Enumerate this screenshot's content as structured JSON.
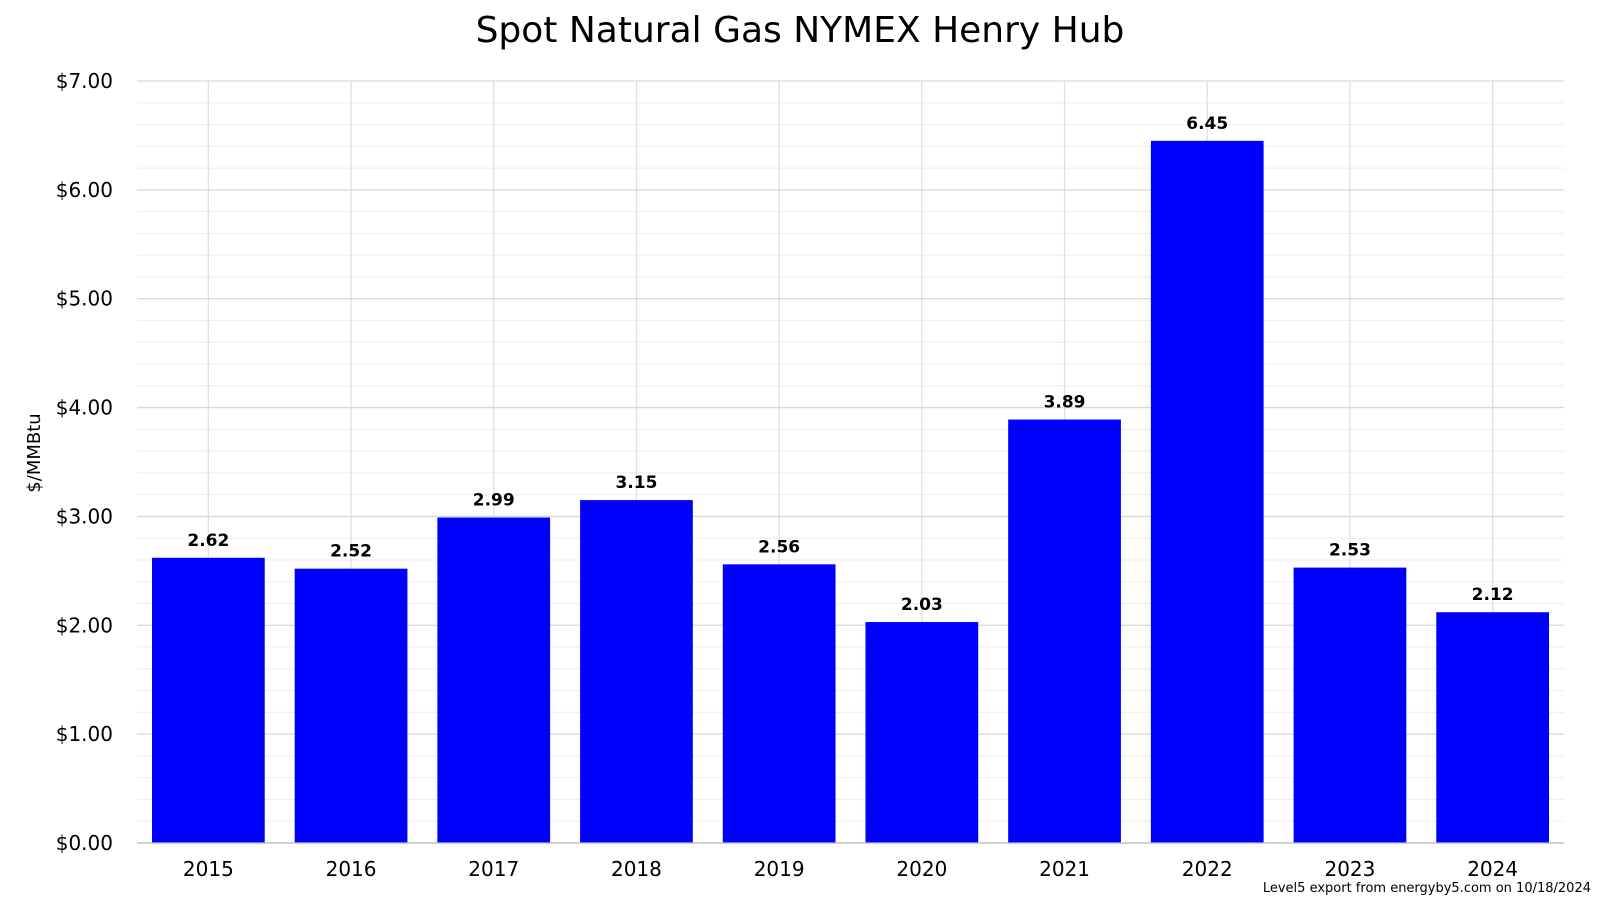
{
  "chart_data": {
    "type": "bar",
    "title": "Spot Natural Gas NYMEX Henry Hub",
    "ylabel": "$/MMBtu",
    "xlabel": "",
    "categories": [
      "2015",
      "2016",
      "2017",
      "2018",
      "2019",
      "2020",
      "2021",
      "2022",
      "2023",
      "2024"
    ],
    "values": [
      2.62,
      2.52,
      2.99,
      3.15,
      2.56,
      2.03,
      3.89,
      6.45,
      2.53,
      2.12
    ],
    "data_labels": [
      "2.62",
      "2.52",
      "2.99",
      "3.15",
      "2.56",
      "2.03",
      "3.89",
      "6.45",
      "2.53",
      "2.12"
    ],
    "ylim": [
      0,
      7
    ],
    "yticks": [
      0,
      1,
      2,
      3,
      4,
      5,
      6,
      7
    ],
    "ytick_labels": [
      "$0.00",
      "$1.00",
      "$2.00",
      "$3.00",
      "$4.00",
      "$5.00",
      "$6.00",
      "$7.00"
    ],
    "minor_gridlines_per_major": 5,
    "grid": true,
    "legend": "none",
    "bar_color": "#0000ff",
    "credit": "Level5 export from energyby5.com on 10/18/2024"
  }
}
